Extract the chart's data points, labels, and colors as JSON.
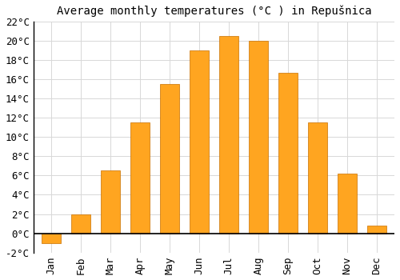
{
  "title": "Average monthly temperatures (°C ) in Repušnica",
  "months": [
    "Jan",
    "Feb",
    "Mar",
    "Apr",
    "May",
    "Jun",
    "Jul",
    "Aug",
    "Sep",
    "Oct",
    "Nov",
    "Dec"
  ],
  "values": [
    -1.0,
    2.0,
    6.5,
    11.5,
    15.5,
    19.0,
    20.5,
    20.0,
    16.7,
    11.5,
    6.2,
    0.8
  ],
  "bar_color": "#FFA520",
  "bar_edge_color": "#C87000",
  "ylim": [
    -2,
    22
  ],
  "yticks": [
    -2,
    0,
    2,
    4,
    6,
    8,
    10,
    12,
    14,
    16,
    18,
    20,
    22
  ],
  "background_color": "#ffffff",
  "grid_color": "#d8d8d8",
  "title_fontsize": 10,
  "tick_fontsize": 9
}
